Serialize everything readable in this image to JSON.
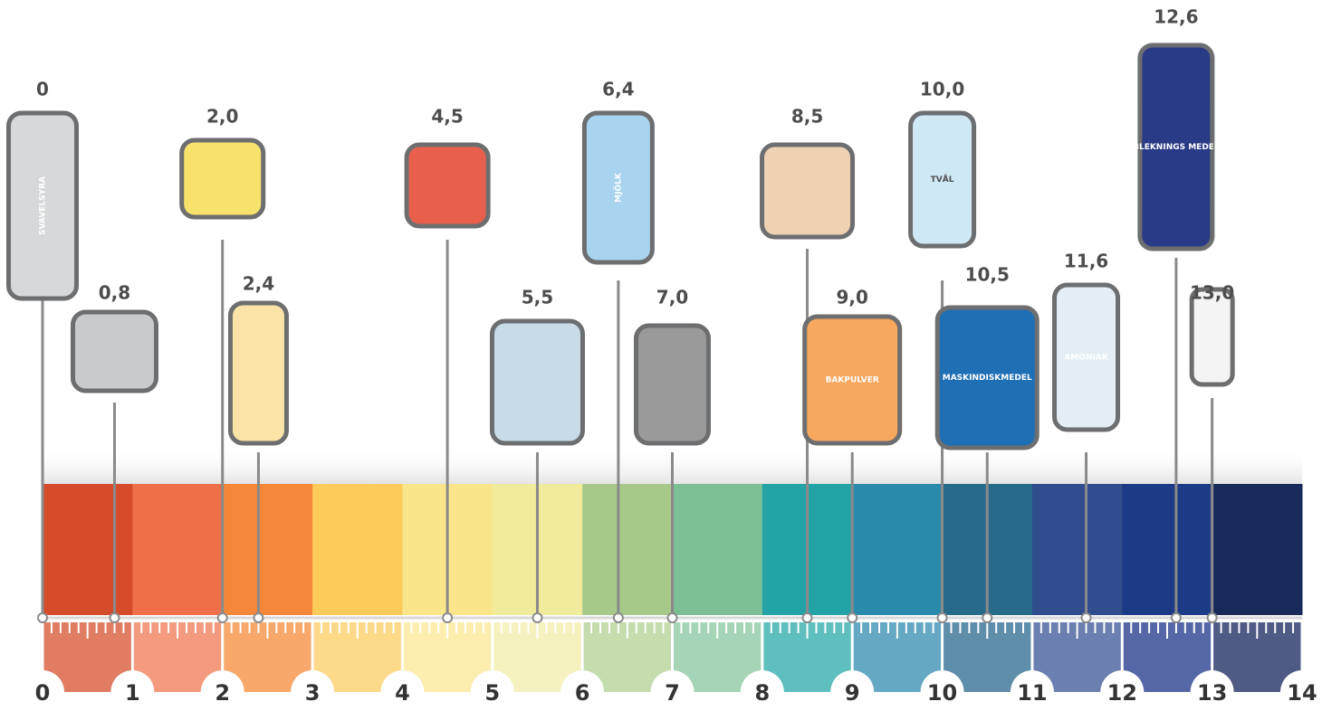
{
  "chart_data": {
    "type": "ph-scale",
    "values": [
      0,
      0.8,
      2.0,
      2.4,
      4.5,
      5.5,
      6.4,
      7.0,
      8.5,
      9.0,
      10.0,
      10.5,
      11.6,
      12.6,
      13.0
    ],
    "value_labels": [
      "0",
      "0,8",
      "2,0",
      "2,4",
      "4,5",
      "5,5",
      "6,4",
      "7,0",
      "8,5",
      "9,0",
      "10,0",
      "10,5",
      "11,6",
      "12,6",
      "13,0"
    ],
    "icon_labels": [
      "SVAVELSYRA",
      null,
      null,
      null,
      null,
      null,
      "MJÖLK",
      null,
      null,
      "BAKPULVER",
      "TVÅL",
      "MASKINDISKMEDEL",
      "AMONIAK",
      "BLEKNINGS MEDEL",
      null
    ],
    "xlim": [
      0,
      14
    ],
    "xticks": [
      0,
      1,
      2,
      3,
      4,
      5,
      6,
      7,
      8,
      9,
      10,
      11,
      12,
      13,
      14
    ],
    "band_colors": [
      "#d64b2a",
      "#ef7048",
      "#f5873a",
      "#fccb5a",
      "#fbe58a",
      "#f0ec9c",
      "#a6c98a",
      "#7cbf95",
      "#23a3a5",
      "#2a8aab",
      "#286a8a",
      "#314d8d",
      "#1c3a85",
      "#172a5a"
    ],
    "ruler_colors": [
      "#e07c62",
      "#f49a7e",
      "#f7a86a",
      "#fdd98a",
      "#fdeeaf",
      "#f5f2c0",
      "#c4dcae",
      "#a6d4b6",
      "#5fbfbf",
      "#64a8c4",
      "#5f8eaa",
      "#6b7fb0",
      "#5567a6",
      "#4f5a85"
    ]
  }
}
